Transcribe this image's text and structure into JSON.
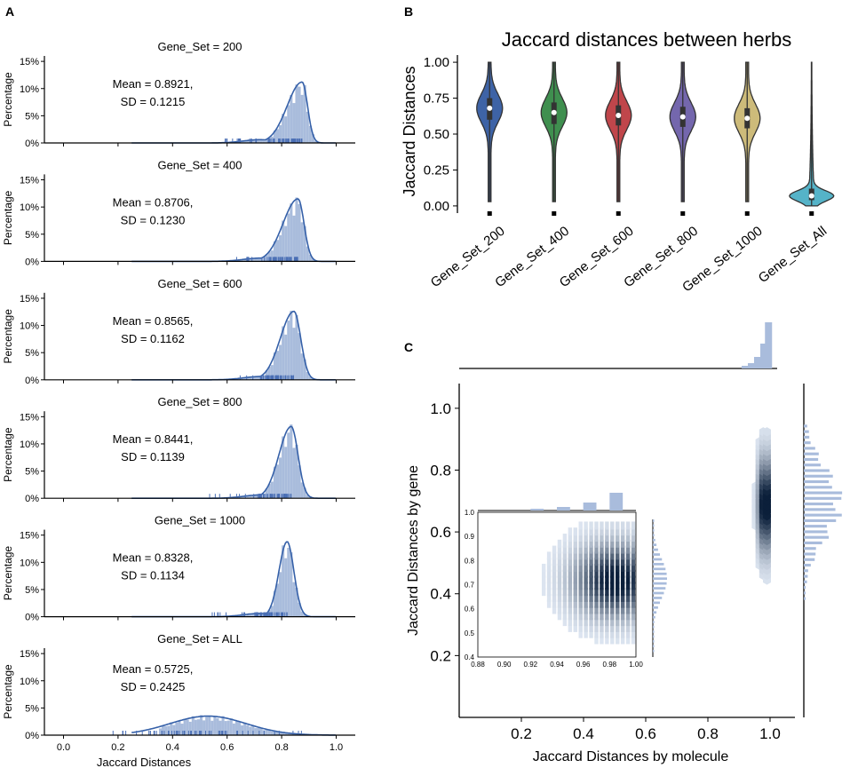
{
  "panel_labels": {
    "a": "A",
    "b": "B",
    "c": "C"
  },
  "colors": {
    "hist_fill": "#a9bcdc",
    "kde_line": "#3560a8",
    "rug": "#4a6fb5",
    "violins": [
      "#3e63a6",
      "#3f8f4f",
      "#c0464b",
      "#7467ad",
      "#cdbb7a",
      "#55b3c8"
    ],
    "hex_dark": "#0b1f3a",
    "hex_light": "#e4ecf7"
  },
  "chart_data": [
    {
      "type": "histogram",
      "panel": "A",
      "xlabel": "Jaccard Distances",
      "ylabel": "Percentage",
      "xlim": [
        -0.07,
        1.07
      ],
      "ylim": [
        0,
        16
      ],
      "x_ticks": [
        0.0,
        0.2,
        0.4,
        0.6,
        0.8,
        1.0
      ],
      "x_tick_labels": [
        "0.0",
        "0.2",
        "0.4",
        "0.6",
        "0.8",
        "1.0"
      ],
      "y_ticks": [
        0,
        5,
        10,
        15
      ],
      "y_tick_labels": [
        "0%",
        "5%",
        "10%",
        "15%"
      ],
      "subplots": [
        {
          "title": "Gene_Set = 200",
          "mean_label": "Mean = 0.8921,",
          "sd_label": "SD = 0.1215",
          "peak": 0.875,
          "width_left": 0.055,
          "width_right": 0.02,
          "height": 11.2,
          "tail": 0.6
        },
        {
          "title": "Gene_Set = 400",
          "mean_label": "Mean = 0.8706,",
          "sd_label": "SD = 0.1230",
          "peak": 0.86,
          "width_left": 0.055,
          "width_right": 0.022,
          "height": 11.5,
          "tail": 0.6
        },
        {
          "title": "Gene_Set = 600",
          "mean_label": "Mean = 0.8565,",
          "sd_label": "SD = 0.1162",
          "peak": 0.845,
          "width_left": 0.05,
          "width_right": 0.025,
          "height": 12.6,
          "tail": 0.6
        },
        {
          "title": "Gene_Set = 800",
          "mean_label": "Mean = 0.8441,",
          "sd_label": "SD = 0.1139",
          "peak": 0.835,
          "width_left": 0.045,
          "width_right": 0.025,
          "height": 13.2,
          "tail": 0.6
        },
        {
          "title": "Gene_Set = 1000",
          "mean_label": "Mean = 0.8328,",
          "sd_label": "SD = 0.1134",
          "peak": 0.82,
          "width_left": 0.03,
          "width_right": 0.025,
          "height": 13.8,
          "tail": 0.6
        },
        {
          "title": "Gene_Set = ALL",
          "mean_label": "Mean = 0.5725,",
          "sd_label": "SD = 0.2425",
          "peak": 0.53,
          "width_left": 0.14,
          "width_right": 0.14,
          "height": 3.5,
          "tail": 0
        }
      ]
    },
    {
      "type": "violin",
      "panel": "B",
      "title": "Jaccard distances between herbs",
      "ylabel": "Jaccard Distances",
      "ylim": [
        -0.05,
        1.05
      ],
      "y_ticks": [
        0.0,
        0.25,
        0.5,
        0.75,
        1.0
      ],
      "y_tick_labels": [
        "0.00",
        "0.25",
        "0.50",
        "0.75",
        "1.00"
      ],
      "categories": [
        "Gene_Set_200",
        "Gene_Set_400",
        "Gene_Set_600",
        "Gene_Set_800",
        "Gene_Set_1000",
        "Gene_Set_All"
      ],
      "medians": [
        0.68,
        0.65,
        0.63,
        0.62,
        0.61,
        0.07
      ],
      "q1": [
        0.6,
        0.57,
        0.56,
        0.55,
        0.54,
        0.04
      ],
      "q3": [
        0.75,
        0.72,
        0.7,
        0.69,
        0.68,
        0.12
      ],
      "min": [
        0.03,
        0.03,
        0.03,
        0.03,
        0.03,
        0.0
      ],
      "max": [
        1.0,
        1.0,
        1.0,
        1.0,
        1.0,
        1.0
      ]
    },
    {
      "type": "hexbin_joint",
      "panel": "C",
      "xlabel": "Jaccard Distances by molecule",
      "ylabel": "Jaccard Distances by gene",
      "xlim": [
        0.0,
        1.08
      ],
      "ylim": [
        0.0,
        1.08
      ],
      "x_ticks": [
        0.2,
        0.4,
        0.6,
        0.8,
        1.0
      ],
      "x_tick_labels": [
        "0.2",
        "0.4",
        "0.6",
        "0.8",
        "1.0"
      ],
      "y_ticks": [
        0.2,
        0.4,
        0.6,
        0.8,
        1.0
      ],
      "y_tick_labels": [
        "0.2",
        "0.4",
        "0.6",
        "0.8",
        "1.0"
      ],
      "x_center": 0.985,
      "y_center": 0.69,
      "y_spread": 0.14,
      "inset": {
        "xlim": [
          0.88,
          1.0
        ],
        "ylim": [
          0.4,
          1.0
        ],
        "x_ticks": [
          0.88,
          0.9,
          0.92,
          0.94,
          0.96,
          0.98,
          1.0
        ],
        "x_tick_labels": [
          "0.88",
          "0.90",
          "0.92",
          "0.94",
          "0.96",
          "0.98",
          "1.00"
        ],
        "y_ticks": [
          0.4,
          0.5,
          0.6,
          0.7,
          0.8,
          0.9,
          1.0
        ],
        "y_tick_labels": [
          "0.4",
          "0.5",
          "0.6",
          "0.7",
          "0.8",
          "0.9",
          "1.0"
        ],
        "x_center": 0.985,
        "y_center": 0.72
      }
    }
  ]
}
